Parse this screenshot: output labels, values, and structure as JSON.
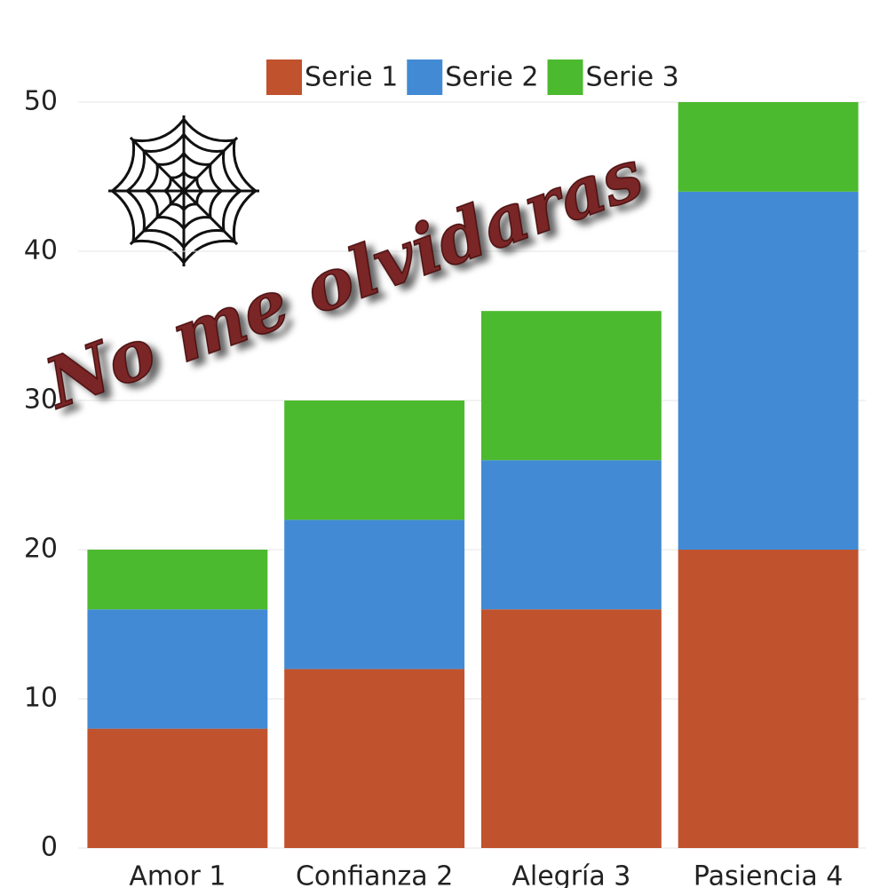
{
  "chart_data": {
    "type": "stacked_bar",
    "annotation": "No me olvidaras",
    "categories": [
      "Amor 1",
      "Confianza 2",
      "Alegría 3",
      "Pasiencia 4"
    ],
    "series": [
      {
        "name": "Serie 1",
        "color": "#c0522e",
        "values": [
          8,
          12,
          16,
          20
        ]
      },
      {
        "name": "Serie 2",
        "color": "#428bd4",
        "values": [
          8,
          10,
          10,
          24
        ]
      },
      {
        "name": "Serie 3",
        "color": "#4cba2e",
        "values": [
          4,
          8,
          10,
          6
        ]
      }
    ],
    "ylim": [
      0,
      50
    ],
    "yticks": [
      0,
      10,
      20,
      30,
      40,
      50
    ],
    "grid": true,
    "legend": "top"
  }
}
